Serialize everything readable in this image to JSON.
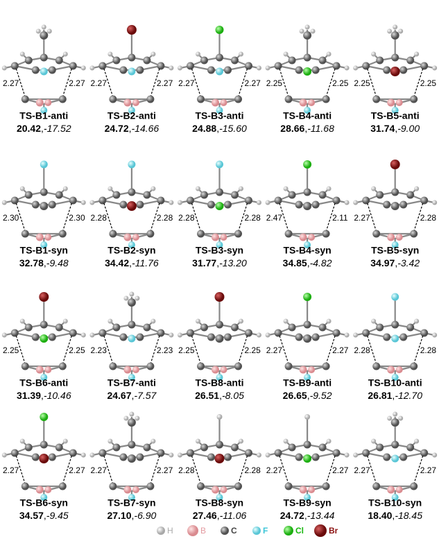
{
  "panels": [
    {
      "name": "TS-B1-anti",
      "left": "2.27",
      "right": "2.27",
      "e1": "20.42",
      "e2": "-17.52"
    },
    {
      "name": "TS-B2-anti",
      "left": "2.27",
      "right": "2.27",
      "e1": "24.72",
      "e2": "-14.66"
    },
    {
      "name": "TS-B3-anti",
      "left": "2.27",
      "right": "2.27",
      "e1": "24.88",
      "e2": "-15.60"
    },
    {
      "name": "TS-B4-anti",
      "left": "2.25",
      "right": "2.25",
      "e1": "28.66",
      "e2": "-11.68"
    },
    {
      "name": "TS-B5-anti",
      "left": "2.25",
      "right": "2.25",
      "e1": "31.74",
      "e2": "-9.00"
    },
    {
      "name": "TS-B1-syn",
      "left": "2.30",
      "right": "2.30",
      "e1": "32.78",
      "e2": "-9.48"
    },
    {
      "name": "TS-B2-syn",
      "left": "2.28",
      "right": "2.28",
      "e1": "34.42",
      "e2": "-11.76"
    },
    {
      "name": "TS-B3-syn",
      "left": "2.28",
      "right": "2.28",
      "e1": "31.77",
      "e2": "-13.20"
    },
    {
      "name": "TS-B4-syn",
      "left": "2.47",
      "right": "2.11",
      "e1": "34.85",
      "e2": "-4.82"
    },
    {
      "name": "TS-B5-syn",
      "left": "2.27",
      "right": "2.28",
      "e1": "34.97",
      "e2": "-3.42"
    },
    {
      "name": "TS-B6-anti",
      "left": "2.25",
      "right": "2.25",
      "e1": "31.39",
      "e2": "-10.46"
    },
    {
      "name": "TS-B7-anti",
      "left": "2.23",
      "right": "2.23",
      "e1": "24.67",
      "e2": "-7.57"
    },
    {
      "name": "TS-B8-anti",
      "left": "2.25",
      "right": "2.25",
      "e1": "26.51",
      "e2": "-8.05"
    },
    {
      "name": "TS-B9-anti",
      "left": "2.27",
      "right": "2.27",
      "e1": "26.65",
      "e2": "-9.52"
    },
    {
      "name": "TS-B10-anti",
      "left": "2.28",
      "right": "2.28",
      "e1": "26.81",
      "e2": "-12.70"
    },
    {
      "name": "TS-B6-syn",
      "left": "2.27",
      "right": "2.27",
      "e1": "34.57",
      "e2": "-9.45"
    },
    {
      "name": "TS-B7-syn",
      "left": "2.27",
      "right": "2.27",
      "e1": "27.10",
      "e2": "-6.90"
    },
    {
      "name": "TS-B8-syn",
      "left": "2.28",
      "right": "2.28",
      "e1": "27.46",
      "e2": "-11.06"
    },
    {
      "name": "TS-B9-syn",
      "left": "2.27",
      "right": "2.27",
      "e1": "24.72",
      "e2": "-13.44"
    },
    {
      "name": "TS-B10-syn",
      "left": "2.27",
      "right": "2.27",
      "e1": "18.40",
      "e2": "-18.45"
    }
  ],
  "separator": ",",
  "legend": [
    "H",
    "B",
    "C",
    "F",
    "Cl",
    "Br"
  ]
}
